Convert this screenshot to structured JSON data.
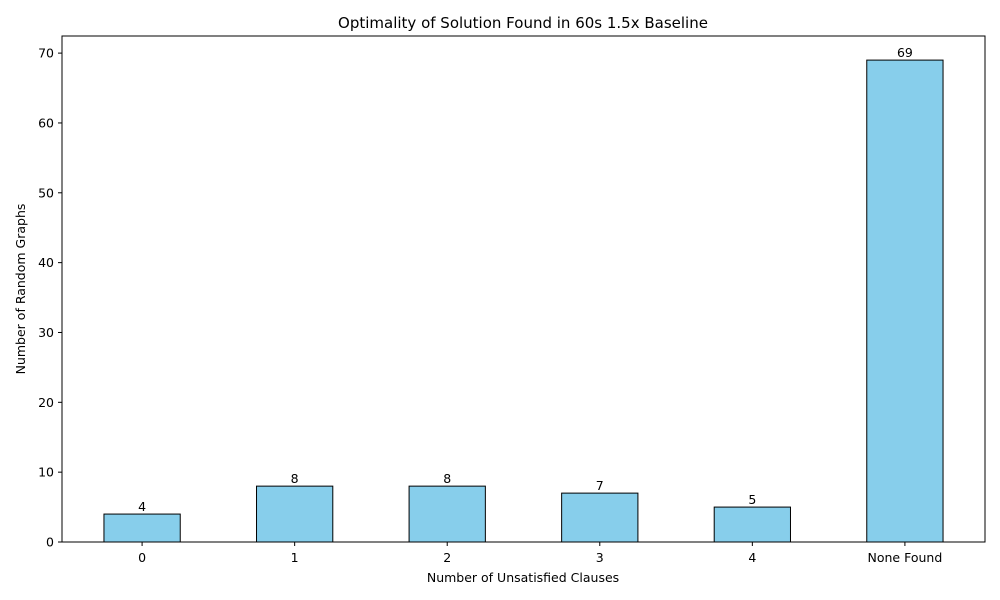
{
  "chart_data": {
    "type": "bar",
    "title": "Optimality of Solution Found in 60s 1.5x Baseline",
    "xlabel": "Number of Unsatisfied Clauses",
    "ylabel": "Number of Random Graphs",
    "categories": [
      "0",
      "1",
      "2",
      "3",
      "4",
      "None Found"
    ],
    "values": [
      4,
      8,
      8,
      7,
      5,
      69
    ],
    "ylim": [
      0,
      72.45
    ],
    "yticks": [
      0,
      10,
      20,
      30,
      40,
      50,
      60,
      70
    ],
    "grid": false,
    "bar_color": "#87ceeb",
    "bar_edge_color": "#000000",
    "show_data_labels": true
  }
}
